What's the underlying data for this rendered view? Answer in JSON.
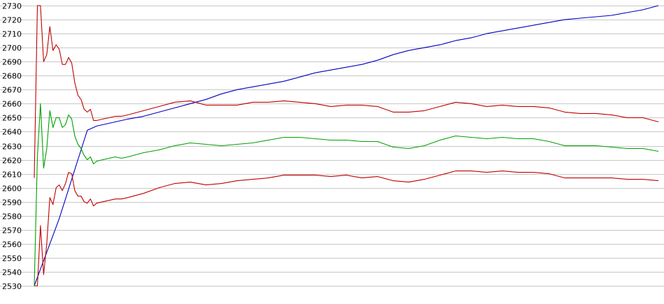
{
  "chart_data": {
    "type": "line",
    "title": "",
    "xlabel": "",
    "ylabel": "",
    "ylim": [
      2530,
      2730
    ],
    "yticks": [
      2530,
      2540,
      2550,
      2560,
      2570,
      2580,
      2590,
      2600,
      2610,
      2620,
      2630,
      2640,
      2650,
      2660,
      2670,
      2680,
      2690,
      2700,
      2710,
      2720,
      2730
    ],
    "grid": "horizontal",
    "legend": "none",
    "x": [
      0,
      1,
      2,
      3,
      4,
      5,
      6,
      7,
      8,
      9,
      10,
      11,
      12,
      13,
      14,
      15,
      16,
      17,
      18,
      19,
      20,
      22,
      24,
      26,
      28,
      30,
      35,
      40,
      45,
      50,
      55,
      60,
      65,
      70,
      75,
      80,
      85,
      90,
      95,
      100,
      105,
      110,
      115,
      120,
      125,
      130,
      135,
      140,
      145,
      150,
      155,
      160,
      165,
      170,
      175,
      180,
      185,
      190,
      195,
      200
    ],
    "series": [
      {
        "color": "#0000c0",
        "values": [
          2530,
          2536,
          2542,
          2548,
          2554,
          2560,
          2566,
          2572,
          2578,
          2585,
          2592,
          2599,
          2606,
          2613,
          2620,
          2627,
          2634,
          2641,
          2642,
          2643,
          2644,
          2645,
          2646,
          2647,
          2648,
          2649,
          2651,
          2654,
          2657,
          2660,
          2663,
          2667,
          2670,
          2672,
          2674,
          2676,
          2679,
          2682,
          2684,
          2686,
          2688,
          2691,
          2695,
          2698,
          2700,
          2702,
          2705,
          2707,
          2710,
          2712,
          2714,
          2716,
          2718,
          2720,
          2721,
          2722,
          2723,
          2725,
          2727,
          2730
        ]
      },
      {
        "color": "#c00000",
        "values": [
          2530,
          2530,
          2573,
          2538,
          2560,
          2593,
          2588,
          2600,
          2602,
          2598,
          2603,
          2611,
          2610,
          2598,
          2594,
          2594,
          2590,
          2589,
          2592,
          2587,
          2589,
          2590,
          2591,
          2592,
          2592,
          2593,
          2596,
          2600,
          2603,
          2604,
          2602,
          2603,
          2605,
          2606,
          2607,
          2609,
          2609,
          2609,
          2608,
          2609,
          2607,
          2608,
          2605,
          2604,
          2606,
          2609,
          2612,
          2612,
          2611,
          2612,
          2611,
          2611,
          2610,
          2607,
          2607,
          2607,
          2607,
          2606,
          2606,
          2605
        ]
      },
      {
        "color": "#00a000",
        "values": [
          2530,
          2622,
          2660,
          2614,
          2628,
          2655,
          2643,
          2650,
          2650,
          2643,
          2645,
          2652,
          2649,
          2637,
          2631,
          2628,
          2623,
          2620,
          2622,
          2617,
          2619,
          2620,
          2621,
          2622,
          2621,
          2622,
          2625,
          2627,
          2630,
          2632,
          2631,
          2630,
          2631,
          2632,
          2634,
          2636,
          2636,
          2635,
          2634,
          2634,
          2633,
          2633,
          2629,
          2628,
          2630,
          2634,
          2637,
          2636,
          2635,
          2636,
          2635,
          2635,
          2633,
          2630,
          2630,
          2630,
          2629,
          2628,
          2628,
          2626
        ]
      },
      {
        "color": "#c00000",
        "values": [
          2607,
          2730,
          2730,
          2690,
          2695,
          2715,
          2698,
          2702,
          2699,
          2688,
          2688,
          2693,
          2689,
          2675,
          2666,
          2663,
          2656,
          2654,
          2656,
          2648,
          2648,
          2649,
          2650,
          2651,
          2651,
          2652,
          2655,
          2658,
          2661,
          2662,
          2659,
          2659,
          2659,
          2661,
          2661,
          2662,
          2661,
          2660,
          2658,
          2659,
          2659,
          2658,
          2654,
          2654,
          2655,
          2658,
          2661,
          2660,
          2658,
          2659,
          2658,
          2658,
          2657,
          2654,
          2653,
          2653,
          2652,
          2650,
          2650,
          2647
        ]
      }
    ]
  }
}
